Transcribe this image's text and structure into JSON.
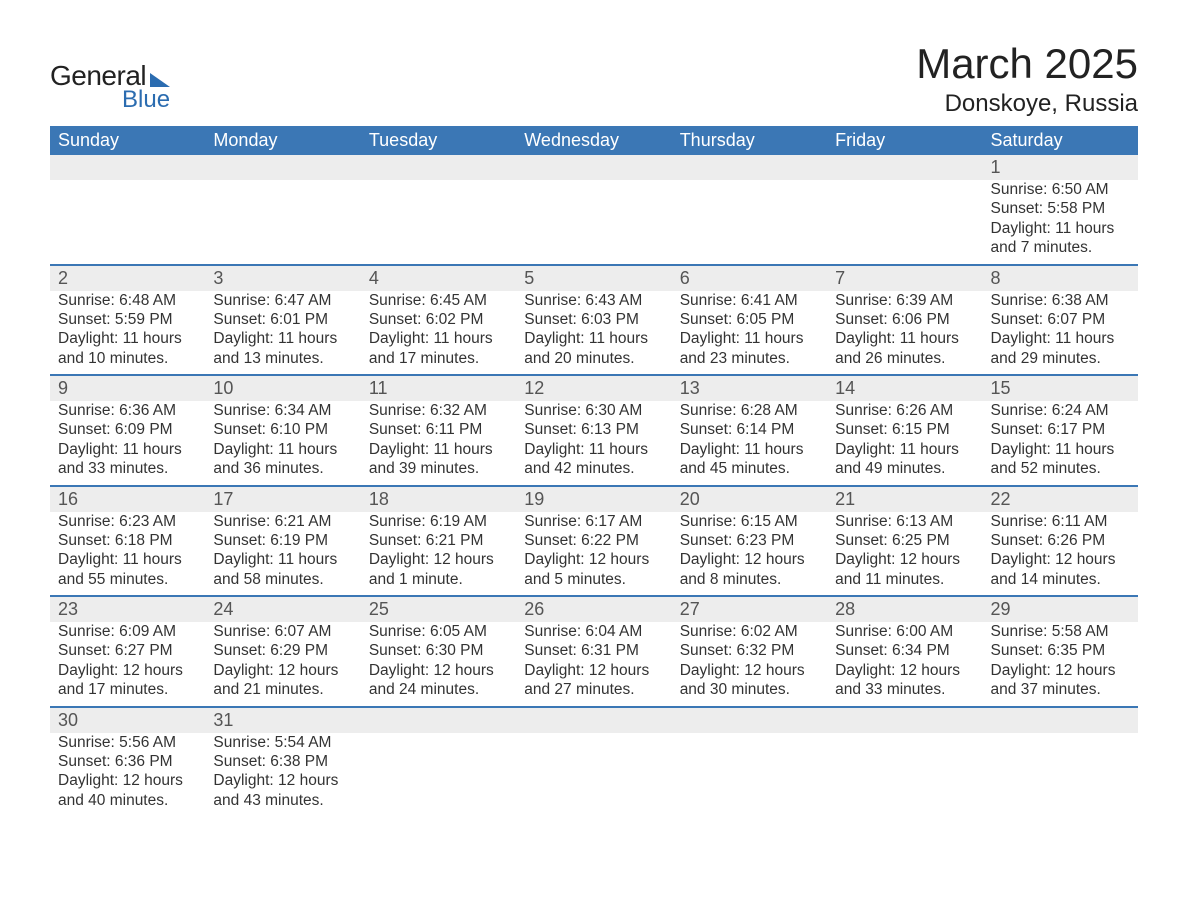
{
  "logo": {
    "text1": "General",
    "text2": "Blue",
    "triangle_color": "#2b6cb0"
  },
  "title": "March 2025",
  "location": "Donskoye, Russia",
  "colors": {
    "header_bg": "#3b77b5",
    "header_text": "#ffffff",
    "row_divider": "#3b77b5",
    "daynum_bg": "#ededed",
    "body_text": "#333333",
    "daynum_text": "#555555",
    "background": "#ffffff"
  },
  "fonts": {
    "title_pt": 42,
    "location_pt": 24,
    "header_pt": 18,
    "daynum_pt": 18,
    "body_pt": 15.5
  },
  "weekdays": [
    "Sunday",
    "Monday",
    "Tuesday",
    "Wednesday",
    "Thursday",
    "Friday",
    "Saturday"
  ],
  "weeks": [
    [
      {
        "day": "",
        "lines": []
      },
      {
        "day": "",
        "lines": []
      },
      {
        "day": "",
        "lines": []
      },
      {
        "day": "",
        "lines": []
      },
      {
        "day": "",
        "lines": []
      },
      {
        "day": "",
        "lines": []
      },
      {
        "day": "1",
        "lines": [
          "Sunrise: 6:50 AM",
          "Sunset: 5:58 PM",
          "Daylight: 11 hours and 7 minutes."
        ]
      }
    ],
    [
      {
        "day": "2",
        "lines": [
          "Sunrise: 6:48 AM",
          "Sunset: 5:59 PM",
          "Daylight: 11 hours and 10 minutes."
        ]
      },
      {
        "day": "3",
        "lines": [
          "Sunrise: 6:47 AM",
          "Sunset: 6:01 PM",
          "Daylight: 11 hours and 13 minutes."
        ]
      },
      {
        "day": "4",
        "lines": [
          "Sunrise: 6:45 AM",
          "Sunset: 6:02 PM",
          "Daylight: 11 hours and 17 minutes."
        ]
      },
      {
        "day": "5",
        "lines": [
          "Sunrise: 6:43 AM",
          "Sunset: 6:03 PM",
          "Daylight: 11 hours and 20 minutes."
        ]
      },
      {
        "day": "6",
        "lines": [
          "Sunrise: 6:41 AM",
          "Sunset: 6:05 PM",
          "Daylight: 11 hours and 23 minutes."
        ]
      },
      {
        "day": "7",
        "lines": [
          "Sunrise: 6:39 AM",
          "Sunset: 6:06 PM",
          "Daylight: 11 hours and 26 minutes."
        ]
      },
      {
        "day": "8",
        "lines": [
          "Sunrise: 6:38 AM",
          "Sunset: 6:07 PM",
          "Daylight: 11 hours and 29 minutes."
        ]
      }
    ],
    [
      {
        "day": "9",
        "lines": [
          "Sunrise: 6:36 AM",
          "Sunset: 6:09 PM",
          "Daylight: 11 hours and 33 minutes."
        ]
      },
      {
        "day": "10",
        "lines": [
          "Sunrise: 6:34 AM",
          "Sunset: 6:10 PM",
          "Daylight: 11 hours and 36 minutes."
        ]
      },
      {
        "day": "11",
        "lines": [
          "Sunrise: 6:32 AM",
          "Sunset: 6:11 PM",
          "Daylight: 11 hours and 39 minutes."
        ]
      },
      {
        "day": "12",
        "lines": [
          "Sunrise: 6:30 AM",
          "Sunset: 6:13 PM",
          "Daylight: 11 hours and 42 minutes."
        ]
      },
      {
        "day": "13",
        "lines": [
          "Sunrise: 6:28 AM",
          "Sunset: 6:14 PM",
          "Daylight: 11 hours and 45 minutes."
        ]
      },
      {
        "day": "14",
        "lines": [
          "Sunrise: 6:26 AM",
          "Sunset: 6:15 PM",
          "Daylight: 11 hours and 49 minutes."
        ]
      },
      {
        "day": "15",
        "lines": [
          "Sunrise: 6:24 AM",
          "Sunset: 6:17 PM",
          "Daylight: 11 hours and 52 minutes."
        ]
      }
    ],
    [
      {
        "day": "16",
        "lines": [
          "Sunrise: 6:23 AM",
          "Sunset: 6:18 PM",
          "Daylight: 11 hours and 55 minutes."
        ]
      },
      {
        "day": "17",
        "lines": [
          "Sunrise: 6:21 AM",
          "Sunset: 6:19 PM",
          "Daylight: 11 hours and 58 minutes."
        ]
      },
      {
        "day": "18",
        "lines": [
          "Sunrise: 6:19 AM",
          "Sunset: 6:21 PM",
          "Daylight: 12 hours and 1 minute."
        ]
      },
      {
        "day": "19",
        "lines": [
          "Sunrise: 6:17 AM",
          "Sunset: 6:22 PM",
          "Daylight: 12 hours and 5 minutes."
        ]
      },
      {
        "day": "20",
        "lines": [
          "Sunrise: 6:15 AM",
          "Sunset: 6:23 PM",
          "Daylight: 12 hours and 8 minutes."
        ]
      },
      {
        "day": "21",
        "lines": [
          "Sunrise: 6:13 AM",
          "Sunset: 6:25 PM",
          "Daylight: 12 hours and 11 minutes."
        ]
      },
      {
        "day": "22",
        "lines": [
          "Sunrise: 6:11 AM",
          "Sunset: 6:26 PM",
          "Daylight: 12 hours and 14 minutes."
        ]
      }
    ],
    [
      {
        "day": "23",
        "lines": [
          "Sunrise: 6:09 AM",
          "Sunset: 6:27 PM",
          "Daylight: 12 hours and 17 minutes."
        ]
      },
      {
        "day": "24",
        "lines": [
          "Sunrise: 6:07 AM",
          "Sunset: 6:29 PM",
          "Daylight: 12 hours and 21 minutes."
        ]
      },
      {
        "day": "25",
        "lines": [
          "Sunrise: 6:05 AM",
          "Sunset: 6:30 PM",
          "Daylight: 12 hours and 24 minutes."
        ]
      },
      {
        "day": "26",
        "lines": [
          "Sunrise: 6:04 AM",
          "Sunset: 6:31 PM",
          "Daylight: 12 hours and 27 minutes."
        ]
      },
      {
        "day": "27",
        "lines": [
          "Sunrise: 6:02 AM",
          "Sunset: 6:32 PM",
          "Daylight: 12 hours and 30 minutes."
        ]
      },
      {
        "day": "28",
        "lines": [
          "Sunrise: 6:00 AM",
          "Sunset: 6:34 PM",
          "Daylight: 12 hours and 33 minutes."
        ]
      },
      {
        "day": "29",
        "lines": [
          "Sunrise: 5:58 AM",
          "Sunset: 6:35 PM",
          "Daylight: 12 hours and 37 minutes."
        ]
      }
    ],
    [
      {
        "day": "30",
        "lines": [
          "Sunrise: 5:56 AM",
          "Sunset: 6:36 PM",
          "Daylight: 12 hours and 40 minutes."
        ]
      },
      {
        "day": "31",
        "lines": [
          "Sunrise: 5:54 AM",
          "Sunset: 6:38 PM",
          "Daylight: 12 hours and 43 minutes."
        ]
      },
      {
        "day": "",
        "lines": []
      },
      {
        "day": "",
        "lines": []
      },
      {
        "day": "",
        "lines": []
      },
      {
        "day": "",
        "lines": []
      },
      {
        "day": "",
        "lines": []
      }
    ]
  ]
}
